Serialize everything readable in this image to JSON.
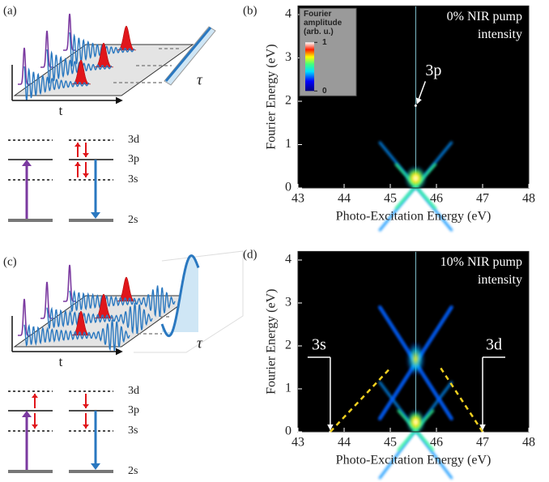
{
  "panels": {
    "panel_a": {
      "label": "(a)",
      "time_label": "t",
      "delay_label": "τ",
      "levels": [
        "3d",
        "3p",
        "3s",
        "2s"
      ]
    },
    "panel_b": {
      "label": "(b)",
      "chart": {
        "type": "heatmap",
        "xlabel": "Photo-Excitation Energy (eV)",
        "ylabel": "Fourier Energy (eV)",
        "xlim": [
          43,
          48
        ],
        "ylim": [
          0,
          4.2
        ],
        "xticks": [
          43,
          44,
          45,
          46,
          47,
          48
        ],
        "yticks": [
          0,
          1,
          2,
          3,
          4
        ],
        "note": [
          "0% NIR pump",
          "intensity"
        ],
        "colorbar": {
          "title": [
            "Fourier",
            "amplitude",
            "(arb. u.)"
          ],
          "lim": [
            0,
            1
          ],
          "ticks": [
            0,
            1
          ]
        },
        "markers": [
          {
            "label": "3p",
            "x": 45.55,
            "y": 1.9
          }
        ]
      }
    },
    "panel_c": {
      "label": "(c)",
      "time_label": "t",
      "delay_label": "τ",
      "levels": [
        "3d",
        "3p",
        "3s",
        "2s"
      ]
    },
    "panel_d": {
      "label": "(d)",
      "chart": {
        "type": "heatmap",
        "xlabel": "Photo-Excitation Energy (eV)",
        "ylabel": "Fourier Energy (eV)",
        "xlim": [
          43,
          48
        ],
        "ylim": [
          0,
          4.2
        ],
        "xticks": [
          43,
          44,
          45,
          46,
          47,
          48
        ],
        "yticks": [
          0,
          1,
          2,
          3,
          4
        ],
        "note": [
          "10% NIR pump",
          "intensity"
        ],
        "markers": [
          {
            "label": "3s",
            "x": 43.7,
            "y": 0
          },
          {
            "label": "3d",
            "x": 47.0,
            "y": 0
          }
        ]
      }
    }
  }
}
